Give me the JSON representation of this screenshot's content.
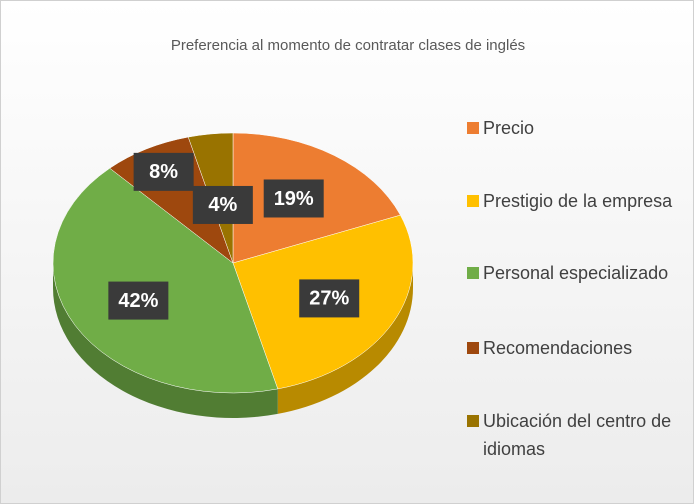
{
  "chart_data": {
    "type": "pie",
    "title": "Preferencia al momento de contratar clases de inglés",
    "categories": [
      "Precio",
      "Prestigio de la empresa",
      "Personal especializado",
      "Recomendaciones",
      "Ubicación del centro de idiomas"
    ],
    "values": [
      19,
      27,
      42,
      8,
      4
    ],
    "value_labels": [
      "19%",
      "27%",
      "42%",
      "8%",
      "4%"
    ],
    "colors": [
      "#ed7d31",
      "#ffc000",
      "#70ad47",
      "#9e480e",
      "#997300"
    ],
    "legend": "right"
  }
}
